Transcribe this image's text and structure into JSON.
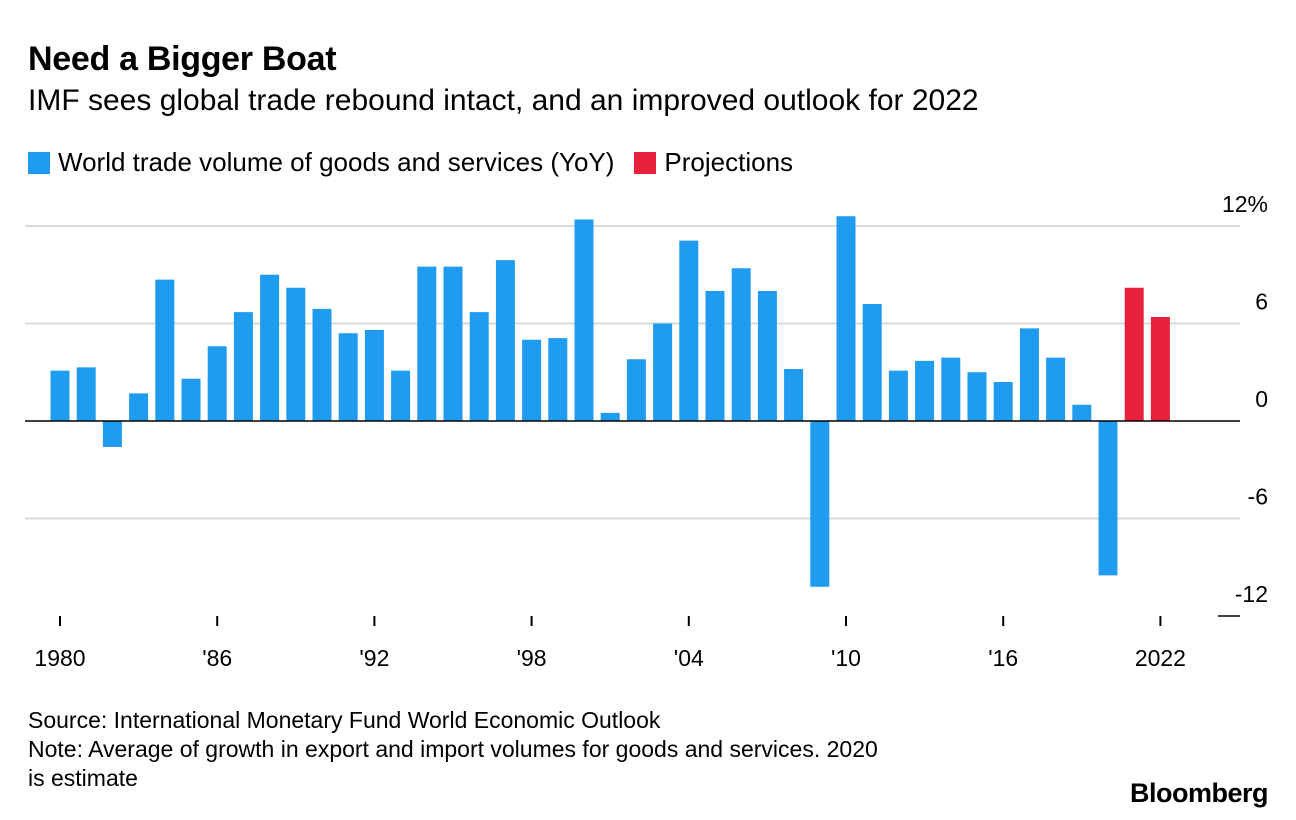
{
  "header": {
    "title": "Need a Bigger Boat",
    "subtitle": "IMF sees global trade rebound intact, and an improved outlook for 2022"
  },
  "legend": [
    {
      "label": "World trade volume of goods and services (YoY)",
      "color": "#1f9bf0"
    },
    {
      "label": "Projections",
      "color": "#e8213b"
    }
  ],
  "footer": {
    "source": "Source: International Monetary Fund World Economic Outlook",
    "note_line1": "Note: Average of growth in export and import volumes for goods and services. 2020",
    "note_line2": "is estimate"
  },
  "brand": "Bloomberg",
  "chart_data": {
    "type": "bar",
    "title": "Need a Bigger Boat",
    "subtitle": "IMF sees global trade rebound intact, and an improved outlook for 2022",
    "xlabel": "",
    "ylabel": "",
    "ylim": [
      -12,
      12
    ],
    "yticks": [
      {
        "value": 12,
        "label": "12%"
      },
      {
        "value": 6,
        "label": "6"
      },
      {
        "value": 0,
        "label": "0"
      },
      {
        "value": -6,
        "label": "-6"
      },
      {
        "value": -12,
        "label": "-12"
      }
    ],
    "xticks": [
      {
        "year": 1980,
        "label": "1980"
      },
      {
        "year": 1986,
        "label": "'86"
      },
      {
        "year": 1992,
        "label": "'92"
      },
      {
        "year": 1998,
        "label": "'98"
      },
      {
        "year": 2004,
        "label": "'04"
      },
      {
        "year": 2010,
        "label": "'10"
      },
      {
        "year": 2016,
        "label": "'16"
      },
      {
        "year": 2022,
        "label": "2022"
      }
    ],
    "grid": true,
    "series": [
      {
        "name": "World trade volume of goods and services (YoY)",
        "color": "#1f9bf0",
        "x": [
          1980,
          1981,
          1982,
          1983,
          1984,
          1985,
          1986,
          1987,
          1988,
          1989,
          1990,
          1991,
          1992,
          1993,
          1994,
          1995,
          1996,
          1997,
          1998,
          1999,
          2000,
          2001,
          2002,
          2003,
          2004,
          2005,
          2006,
          2007,
          2008,
          2009,
          2010,
          2011,
          2012,
          2013,
          2014,
          2015,
          2016,
          2017,
          2018,
          2019,
          2020
        ],
        "values": [
          3.1,
          3.3,
          -1.6,
          1.7,
          8.7,
          2.6,
          4.6,
          6.7,
          9.0,
          8.2,
          6.9,
          5.4,
          5.6,
          3.1,
          9.5,
          9.5,
          6.7,
          9.9,
          5.0,
          5.1,
          12.4,
          0.5,
          3.8,
          6.0,
          11.1,
          8.0,
          9.4,
          8.0,
          3.2,
          -10.2,
          12.6,
          7.2,
          3.1,
          3.7,
          3.9,
          3.0,
          2.4,
          5.7,
          3.9,
          1.0,
          -9.5
        ]
      },
      {
        "name": "Projections",
        "color": "#e8213b",
        "x": [
          2021,
          2022
        ],
        "values": [
          8.2,
          6.4
        ]
      }
    ]
  }
}
